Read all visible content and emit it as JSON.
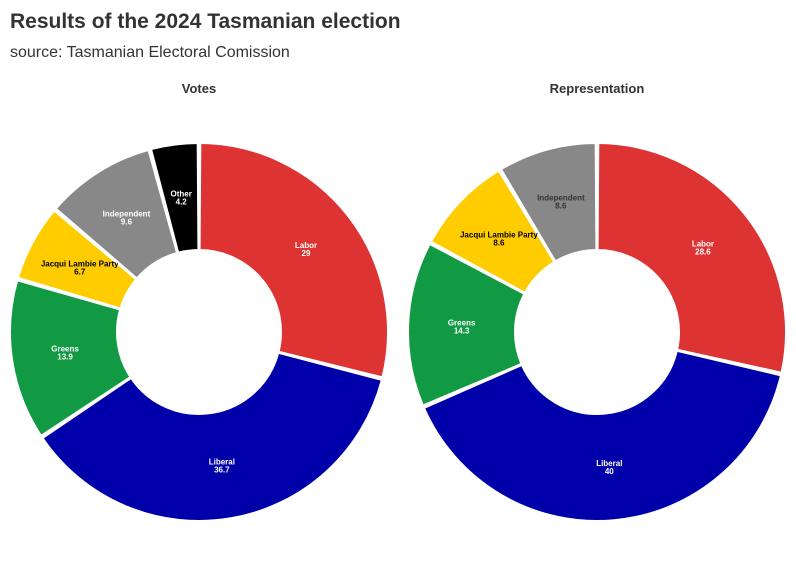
{
  "header": {
    "title": "Results of the 2024 Tasmanian election",
    "subtitle": "source: Tasmanian Electoral Comission"
  },
  "chart_data": [
    {
      "type": "pie",
      "style": "donut",
      "title": "Votes",
      "slices": [
        {
          "name": "Labor",
          "value": 29,
          "color": "#dd3333",
          "label_color": "#ffffff"
        },
        {
          "name": "Liberal",
          "value": 36.7,
          "color": "#0000aa",
          "label_color": "#ffffff"
        },
        {
          "name": "Greens",
          "value": 13.9,
          "color": "#119944",
          "label_color": "#ffffff"
        },
        {
          "name": "Jacqui Lambie Party",
          "value": 6.7,
          "color": "#ffcc00",
          "label_color": "#000000"
        },
        {
          "name": "Independent",
          "value": 9.6,
          "color": "#888888",
          "label_color": "#ffffff"
        },
        {
          "name": "Other",
          "value": 4.2,
          "color": "#000000",
          "label_color": "#ffffff"
        }
      ]
    },
    {
      "type": "pie",
      "style": "donut",
      "title": "Representation",
      "slices": [
        {
          "name": "Labor",
          "value": 28.6,
          "color": "#dd3333",
          "label_color": "#ffffff"
        },
        {
          "name": "Liberal",
          "value": 40,
          "color": "#0000aa",
          "label_color": "#ffffff"
        },
        {
          "name": "Greens",
          "value": 14.3,
          "color": "#119944",
          "label_color": "#ffffff"
        },
        {
          "name": "Jacqui Lambie Party",
          "value": 8.6,
          "color": "#ffcc00",
          "label_color": "#000000"
        },
        {
          "name": "Independent",
          "value": 8.6,
          "color": "#888888",
          "label_color": "#333333"
        }
      ]
    }
  ]
}
